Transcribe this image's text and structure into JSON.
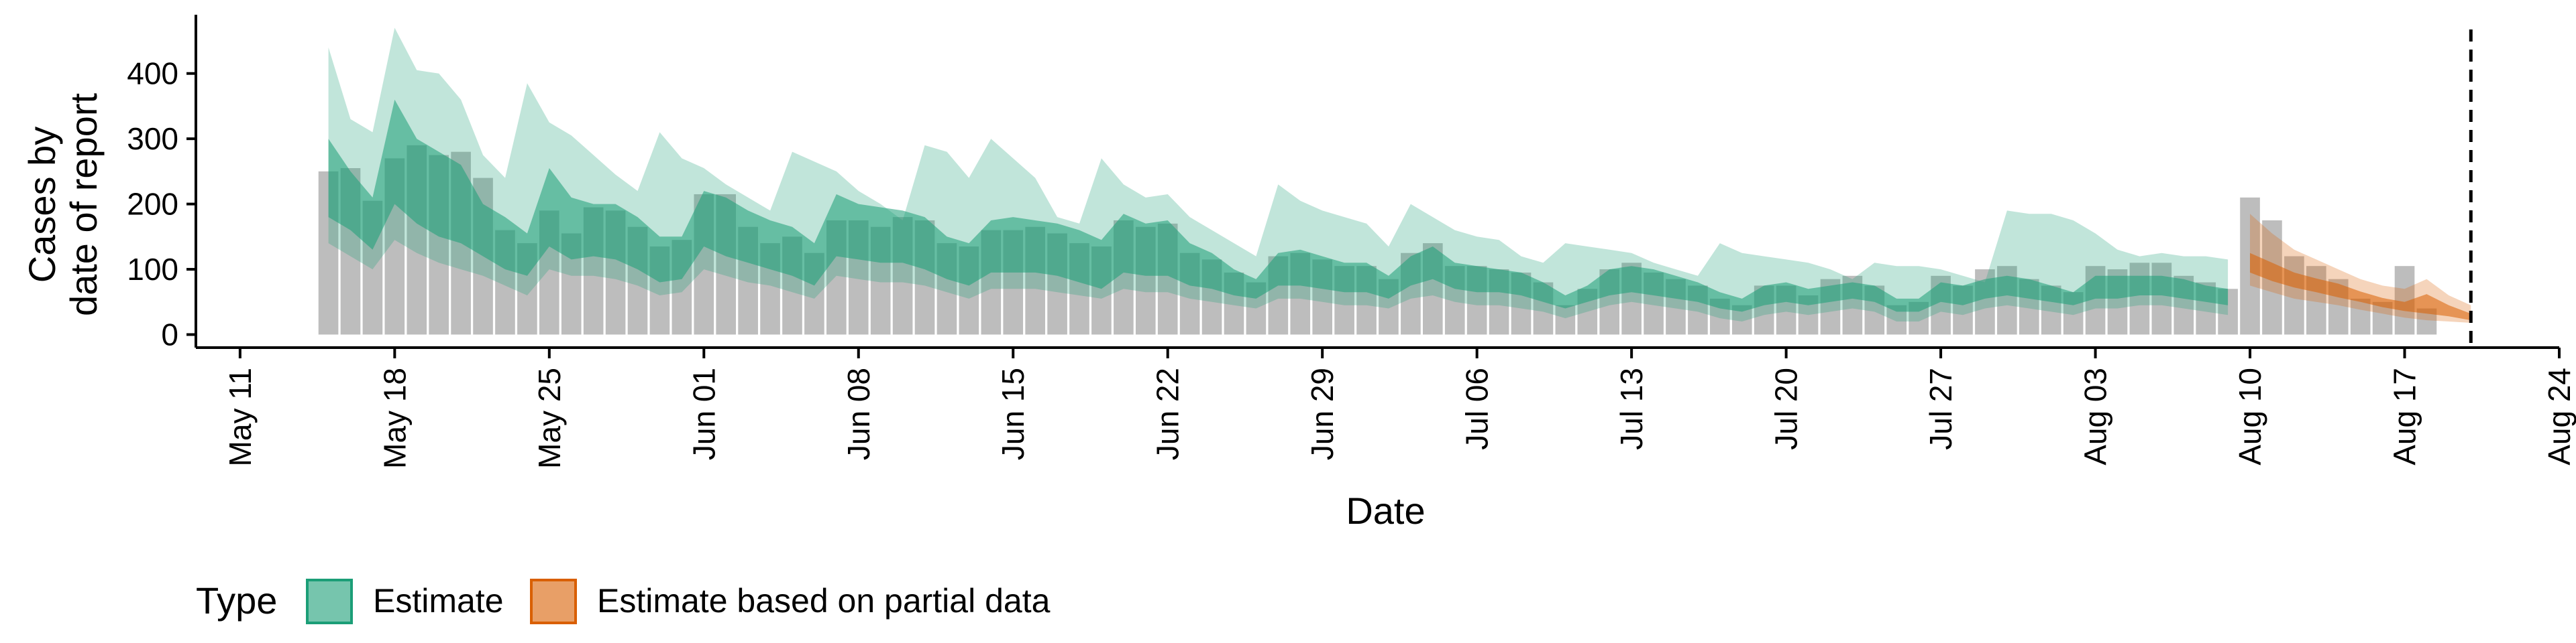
{
  "chart_data": {
    "type": "bar+ribbon",
    "xlabel": "Date",
    "ylabel": [
      "Cases by",
      "date of report"
    ],
    "x_ticks": [
      "May 11",
      "May 18",
      "May 25",
      "Jun 01",
      "Jun 08",
      "Jun 15",
      "Jun 22",
      "Jun 29",
      "Jul 06",
      "Jul 13",
      "Jul 20",
      "Jul 27",
      "Aug 03",
      "Aug 10",
      "Aug 17",
      "Aug 24"
    ],
    "x_tick_dates": [
      "2020-05-11",
      "2020-05-18",
      "2020-05-25",
      "2020-06-01",
      "2020-06-08",
      "2020-06-15",
      "2020-06-22",
      "2020-06-29",
      "2020-07-06",
      "2020-07-13",
      "2020-07-20",
      "2020-07-27",
      "2020-08-03",
      "2020-08-10",
      "2020-08-17",
      "2020-08-24"
    ],
    "y_ticks": [
      0,
      100,
      200,
      300,
      400
    ],
    "xlim": [
      "2020-05-09",
      "2020-08-24"
    ],
    "ylim": [
      -20,
      490
    ],
    "vline": "2020-08-20",
    "legend": {
      "title": "Type",
      "position": "bottom-left",
      "items": [
        {
          "label": "Estimate",
          "color": "#1b9e77"
        },
        {
          "label": "Estimate based on partial data",
          "color": "#d95f02"
        }
      ]
    },
    "colors": {
      "bars": "#bdbdbd",
      "estimate": "#1b9e77",
      "partial": "#d95f02"
    },
    "start_date": "2020-05-15",
    "bars": [
      250,
      255,
      205,
      270,
      290,
      275,
      280,
      240,
      160,
      140,
      190,
      155,
      195,
      190,
      165,
      135,
      145,
      215,
      215,
      165,
      140,
      150,
      125,
      175,
      175,
      165,
      180,
      175,
      140,
      135,
      160,
      160,
      165,
      155,
      140,
      135,
      175,
      165,
      170,
      125,
      115,
      95,
      80,
      120,
      125,
      115,
      105,
      105,
      85,
      125,
      140,
      105,
      105,
      100,
      95,
      80,
      45,
      70,
      100,
      110,
      95,
      85,
      75,
      55,
      45,
      75,
      75,
      60,
      85,
      90,
      75,
      45,
      50,
      90,
      75,
      100,
      105,
      85,
      75,
      65,
      105,
      100,
      110,
      110,
      90,
      80,
      70,
      210,
      175,
      120,
      105,
      85,
      55,
      50,
      105,
      40
    ],
    "series": [
      {
        "name": "Estimate",
        "start_date": "2020-05-15",
        "lower_90": [
          140,
          120,
          100,
          145,
          125,
          110,
          100,
          90,
          75,
          60,
          100,
          90,
          90,
          85,
          75,
          60,
          65,
          100,
          90,
          80,
          75,
          65,
          55,
          90,
          85,
          80,
          80,
          75,
          65,
          55,
          70,
          70,
          70,
          65,
          60,
          55,
          70,
          65,
          65,
          55,
          50,
          45,
          40,
          55,
          55,
          50,
          45,
          45,
          40,
          55,
          60,
          50,
          45,
          45,
          40,
          35,
          25,
          35,
          45,
          50,
          45,
          40,
          35,
          25,
          20,
          30,
          35,
          30,
          35,
          40,
          35,
          20,
          20,
          35,
          30,
          40,
          45,
          40,
          35,
          30,
          40,
          40,
          45,
          45,
          40,
          35,
          30
        ],
        "lower_50": [
          180,
          160,
          130,
          200,
          170,
          150,
          140,
          120,
          100,
          90,
          135,
          115,
          120,
          115,
          100,
          80,
          85,
          135,
          120,
          110,
          100,
          90,
          75,
          120,
          115,
          110,
          110,
          100,
          85,
          75,
          95,
          95,
          95,
          90,
          80,
          70,
          95,
          90,
          90,
          75,
          70,
          60,
          55,
          75,
          75,
          70,
          65,
          65,
          55,
          75,
          85,
          70,
          65,
          65,
          60,
          50,
          40,
          50,
          60,
          65,
          60,
          55,
          50,
          40,
          35,
          45,
          50,
          45,
          50,
          55,
          50,
          35,
          35,
          50,
          45,
          55,
          60,
          55,
          50,
          45,
          55,
          55,
          60,
          60,
          55,
          50,
          45
        ],
        "upper_50": [
          300,
          250,
          210,
          360,
          300,
          280,
          260,
          200,
          180,
          155,
          255,
          210,
          200,
          200,
          180,
          150,
          150,
          220,
          210,
          190,
          175,
          165,
          140,
          215,
          200,
          195,
          190,
          180,
          150,
          140,
          175,
          180,
          175,
          170,
          160,
          145,
          185,
          170,
          175,
          140,
          125,
          100,
          85,
          125,
          130,
          120,
          110,
          110,
          90,
          120,
          135,
          110,
          105,
          100,
          95,
          80,
          60,
          75,
          100,
          105,
          100,
          90,
          80,
          65,
          55,
          75,
          80,
          70,
          75,
          80,
          75,
          55,
          55,
          80,
          75,
          85,
          90,
          85,
          75,
          65,
          90,
          90,
          90,
          90,
          85,
          75,
          70
        ],
        "upper_90": [
          440,
          330,
          310,
          470,
          405,
          400,
          360,
          275,
          240,
          385,
          325,
          305,
          275,
          245,
          220,
          310,
          270,
          255,
          230,
          210,
          190,
          280,
          265,
          250,
          220,
          200,
          175,
          290,
          280,
          240,
          300,
          270,
          240,
          180,
          170,
          270,
          230,
          210,
          215,
          180,
          160,
          140,
          120,
          230,
          205,
          190,
          180,
          170,
          135,
          200,
          180,
          160,
          150,
          145,
          120,
          110,
          140,
          135,
          130,
          125,
          110,
          100,
          90,
          140,
          125,
          120,
          115,
          110,
          100,
          85,
          110,
          105,
          105,
          100,
          90,
          80,
          190,
          185,
          185,
          175,
          155,
          130,
          120,
          125,
          120,
          120,
          115
        ]
      },
      {
        "name": "Estimate based on partial data",
        "start_date": "2020-08-10",
        "lower_90": [
          75,
          65,
          55,
          50,
          45,
          38,
          32,
          26,
          22,
          20,
          18
        ],
        "lower_50": [
          95,
          82,
          72,
          65,
          57,
          50,
          42,
          36,
          32,
          28,
          22
        ],
        "upper_50": [
          125,
          110,
          95,
          86,
          78,
          66,
          56,
          50,
          62,
          45,
          32
        ],
        "upper_90": [
          185,
          155,
          130,
          115,
          100,
          85,
          75,
          70,
          85,
          60,
          45
        ]
      }
    ]
  }
}
